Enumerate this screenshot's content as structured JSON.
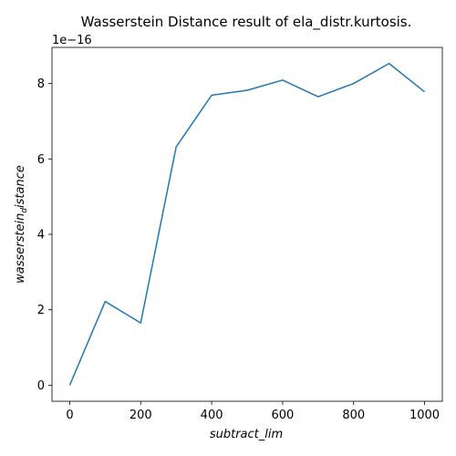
{
  "chart_data": {
    "type": "line",
    "title": "Wasserstein Distance result of ela_distr.kurtosis.",
    "xlabel": "subtract_lim",
    "ylabel_main": "wasserstein",
    "ylabel_sub": "d",
    "ylabel_tail": "istance",
    "y_offset_label": "1e−16",
    "x": [
      0,
      100,
      200,
      300,
      400,
      500,
      600,
      700,
      800,
      900,
      1000
    ],
    "series": [
      {
        "values": [
          0.0,
          2.22,
          1.65,
          6.32,
          7.69,
          7.82,
          8.09,
          7.65,
          8.0,
          8.53,
          7.78
        ],
        "color": "#1f77b4"
      }
    ],
    "xlim": [
      -50,
      1050
    ],
    "ylim": [
      -0.4265,
      8.9565
    ],
    "xticks": [
      0,
      200,
      400,
      600,
      800,
      1000
    ],
    "xtick_labels": [
      "0",
      "200",
      "400",
      "600",
      "800",
      "1000"
    ],
    "yticks": [
      0,
      2,
      4,
      6,
      8
    ],
    "ytick_labels": [
      "0",
      "2",
      "4",
      "6",
      "8"
    ],
    "grid": false
  }
}
